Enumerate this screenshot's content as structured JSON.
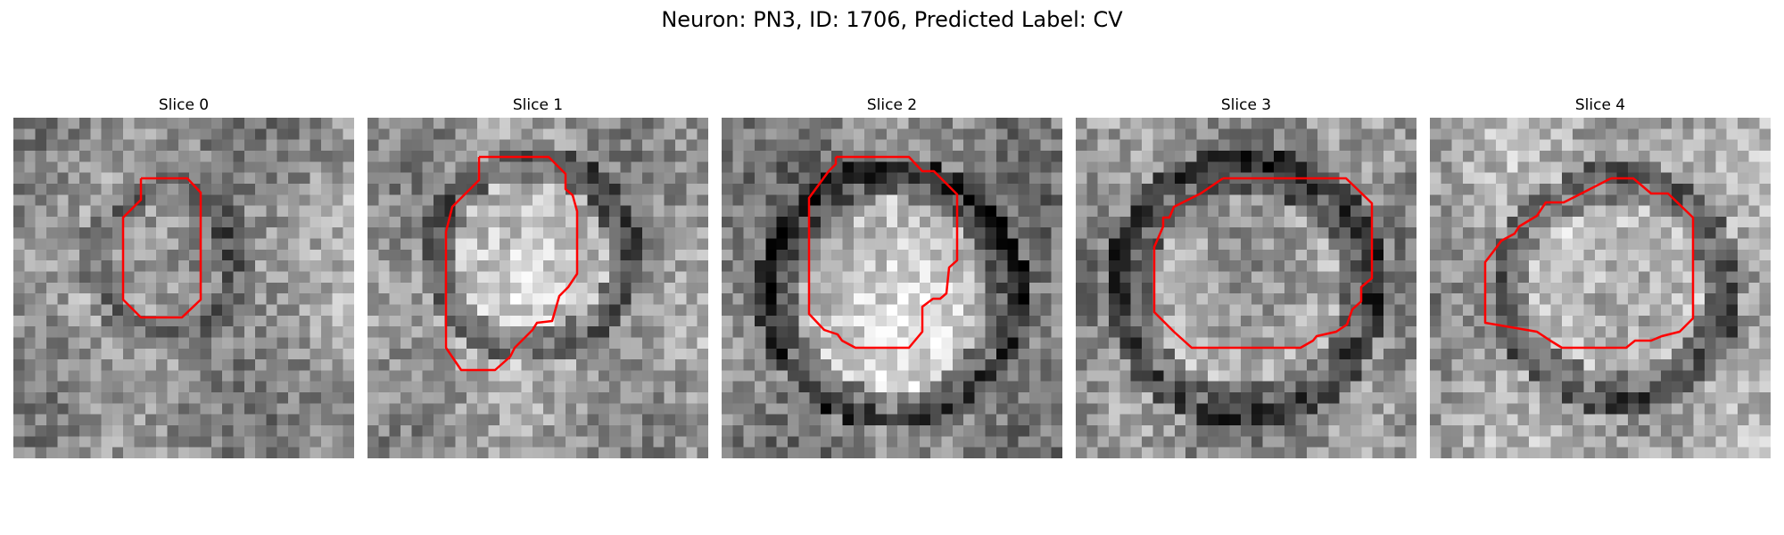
{
  "title": "Neuron: PN3, ID: 1706, Predicted Label: CV",
  "colors": {
    "background": "#ffffff",
    "contour": "#ff0000",
    "colormap": "grayscale"
  },
  "slices": [
    {
      "title": "Slice 0"
    },
    {
      "title": "Slice 1"
    },
    {
      "title": "Slice 2"
    },
    {
      "title": "Slice 3"
    },
    {
      "title": "Slice 4"
    }
  ]
}
